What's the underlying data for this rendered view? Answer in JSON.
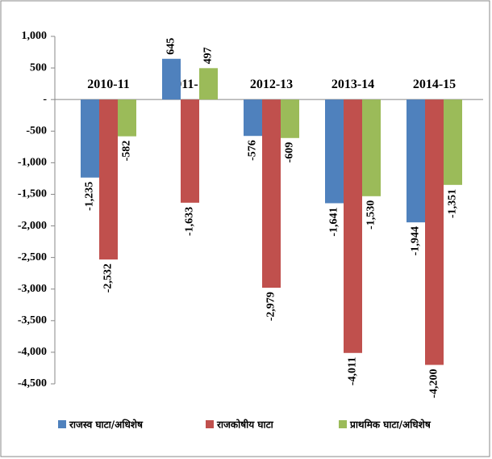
{
  "chart_data": {
    "type": "bar",
    "categories": [
      "2010-11",
      "2011-12",
      "2012-13",
      "2013-14",
      "2014-15"
    ],
    "series": [
      {
        "name": "राजस्व घाटा/अधिशेष",
        "color": "#4f81bd",
        "values": [
          -1235,
          645,
          -576,
          -1641,
          -1944
        ],
        "value_labels": [
          "-1,235",
          "645",
          "-576",
          "-1,641",
          "-1,944"
        ]
      },
      {
        "name": "राजकोषीय घाटा",
        "color": "#c0504d",
        "values": [
          -2532,
          -1633,
          -2979,
          -4011,
          -4200
        ],
        "value_labels": [
          "-2,532",
          "-1,633",
          "-2,979",
          "-4,011",
          "-4,200"
        ]
      },
      {
        "name": "प्राथमिक घाटा/अधिशेष",
        "color": "#9bbb59",
        "values": [
          -582,
          497,
          -609,
          -1530,
          -1351
        ],
        "value_labels": [
          "-582",
          "497",
          "-609",
          "-1,530",
          "-1,351"
        ]
      }
    ],
    "ylim": [
      -4500,
      1000
    ],
    "yticks": [
      {
        "value": 1000,
        "label": "1,000"
      },
      500,
      {
        "value": 0,
        "label": "-"
      },
      -500,
      {
        "value": -1000,
        "label": "-1,000"
      },
      {
        "value": -1500,
        "label": "-1,500"
      },
      {
        "value": -2000,
        "label": "-2,000"
      },
      {
        "value": -2500,
        "label": "-2,500"
      },
      {
        "value": -3000,
        "label": "-3,000"
      },
      {
        "value": -3500,
        "label": "-3,500"
      },
      {
        "value": -4000,
        "label": "-4,000"
      },
      {
        "value": -4500,
        "label": "-4,500"
      }
    ],
    "legend": "bottom"
  }
}
